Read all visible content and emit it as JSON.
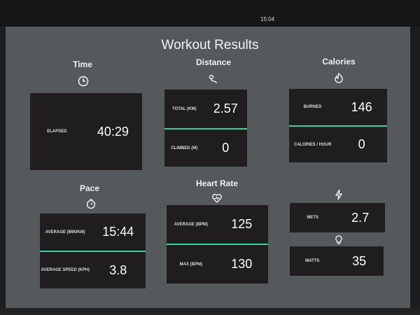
{
  "status_bar": {
    "time": "15:04"
  },
  "title": "Workout Results",
  "accent_color": "#2fd59a",
  "time": {
    "heading": "Time",
    "icon": "clock-icon",
    "elapsed_label": "ELAPSED",
    "elapsed_value": "40:29"
  },
  "distance": {
    "heading": "Distance",
    "icon": "route-icon",
    "total_label": "TOTAL (KM)",
    "total_value": "2.57",
    "climbed_label": "CLIMBED (M)",
    "climbed_value": "0"
  },
  "calories": {
    "heading": "Calories",
    "icon": "flame-icon",
    "burned_label": "BURNED",
    "burned_value": "146",
    "per_hour_label": "CALORIES / HOUR",
    "per_hour_value": "0"
  },
  "pace": {
    "heading": "Pace",
    "icon": "stopwatch-icon",
    "average_label": "AVERAGE (MIN/KM)",
    "average_value": "15:44",
    "speed_label": "AVERAGE SPEED (KPH)",
    "speed_value": "3.8"
  },
  "heart_rate": {
    "heading": "Heart Rate",
    "icon": "heart-pulse-icon",
    "average_label": "AVERAGE (BPM)",
    "average_value": "125",
    "max_label": "MAX (BPM)",
    "max_value": "130"
  },
  "mets": {
    "icon": "lightning-icon",
    "label": "METS",
    "value": "2.7"
  },
  "watts": {
    "icon": "lightbulb-icon",
    "label": "WATTS",
    "value": "35"
  }
}
